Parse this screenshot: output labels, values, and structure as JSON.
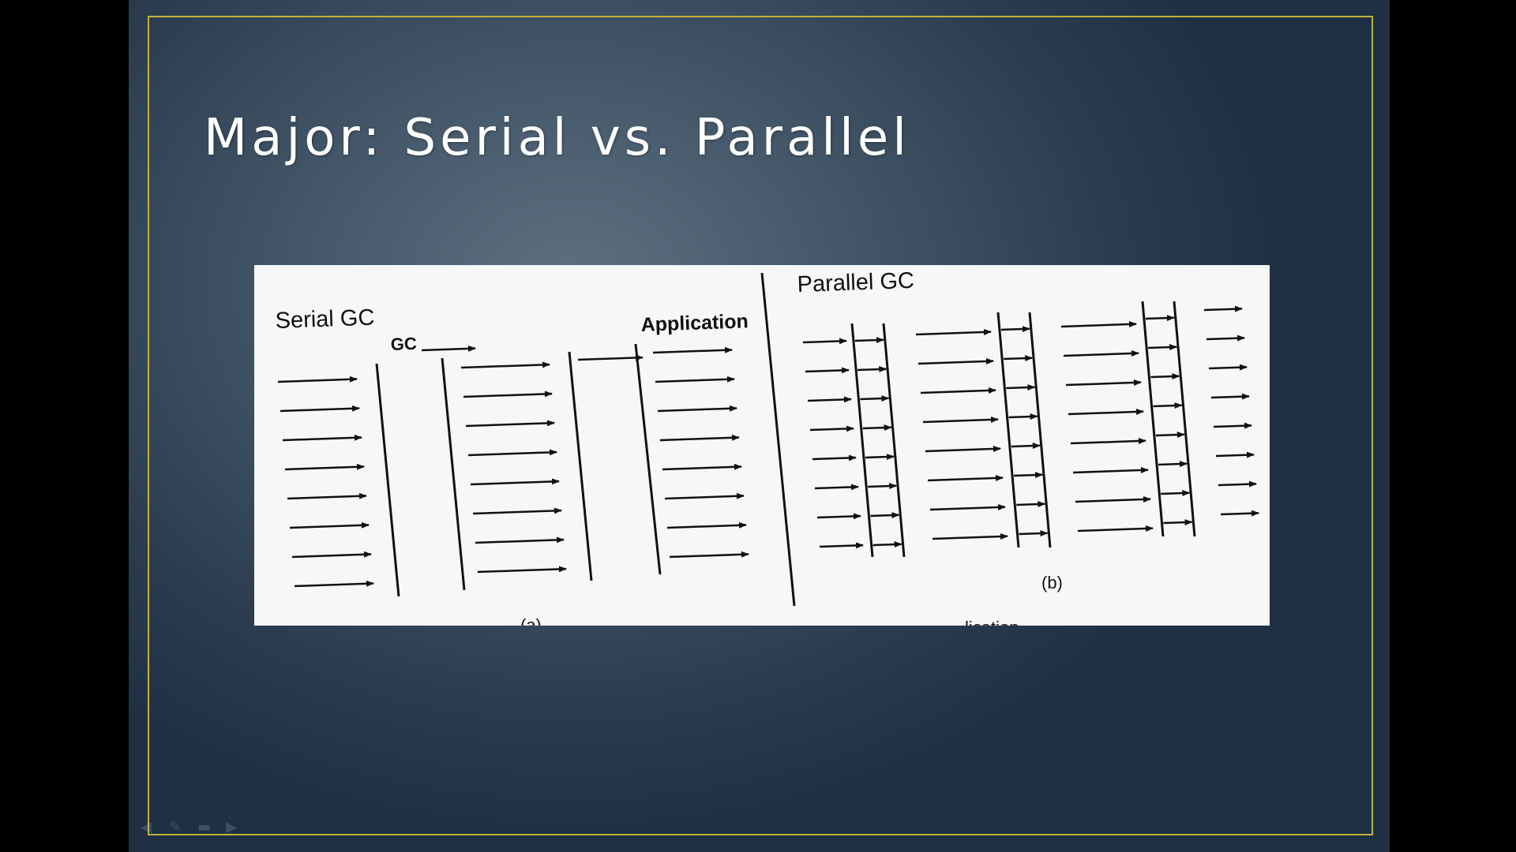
{
  "slide": {
    "title": "Major: Serial vs. Parallel"
  },
  "figure": {
    "panel_a": {
      "label_serial": "Serial GC",
      "label_gc": "GC",
      "label_application": "Application",
      "caption": "(a)"
    },
    "panel_b": {
      "label_parallel": "Parallel GC",
      "caption": "(b)",
      "cut_caption": "lication"
    }
  },
  "nav": {
    "icons": [
      "back-arrow-icon",
      "pen-icon",
      "menu-icon",
      "forward-arrow-icon"
    ]
  }
}
